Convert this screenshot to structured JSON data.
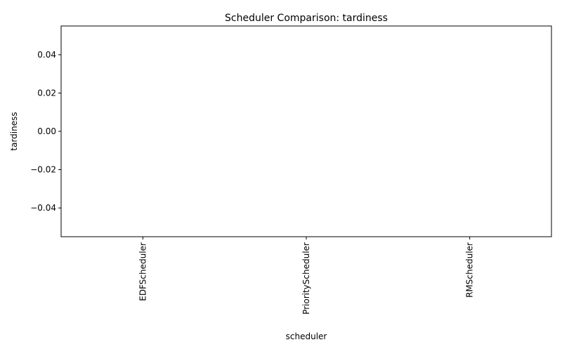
{
  "chart_data": {
    "type": "bar",
    "title": "Scheduler Comparison: tardiness",
    "xlabel": "scheduler",
    "ylabel": "tardiness",
    "categories": [
      "EDFScheduler",
      "PriorityScheduler",
      "RMScheduler"
    ],
    "values": [
      0,
      0,
      0
    ],
    "ylim": [
      -0.055,
      0.055
    ],
    "yticks": [
      -0.04,
      -0.02,
      0.0,
      0.02,
      0.04
    ],
    "ytick_labels": [
      "−0.04",
      "−0.02",
      "0.00",
      "0.02",
      "0.04"
    ],
    "grid": false,
    "legend": "none",
    "colors": {
      "axis": "#000000",
      "bar": "#1f77b4",
      "background": "#ffffff"
    }
  }
}
